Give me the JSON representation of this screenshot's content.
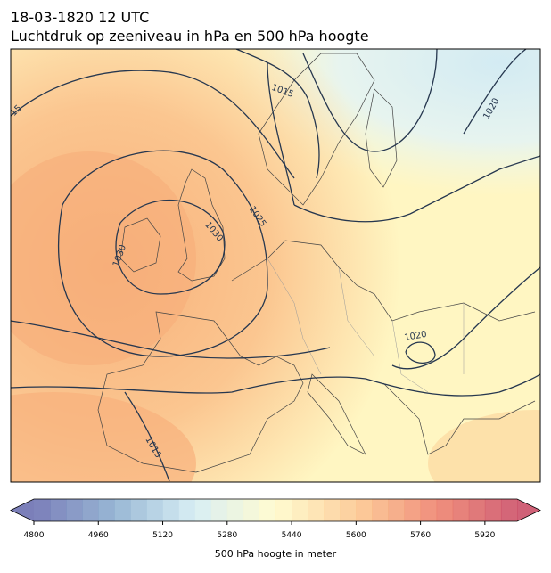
{
  "header": {
    "title": "18-03-1820 12 UTC",
    "subtitle": "Luchtdruk op zeeniveau in hPa en 500 hPa hoogte"
  },
  "isobar_labels": [
    "15",
    "1015",
    "1020",
    "1030",
    "1025",
    "1030",
    "1020",
    "1015"
  ],
  "colorbar": {
    "lim": [
      4800,
      6000
    ],
    "step": 40,
    "ticks": [
      4800,
      4960,
      5120,
      5280,
      5440,
      5600,
      5760,
      5920
    ],
    "label": "500 hPa hoogte in meter",
    "cmap": [
      "#6468ad",
      "#86aacd",
      "#d2ebf2",
      "#fffbc8",
      "#fcc58a",
      "#ee7c66",
      "#c8455f"
    ]
  }
}
